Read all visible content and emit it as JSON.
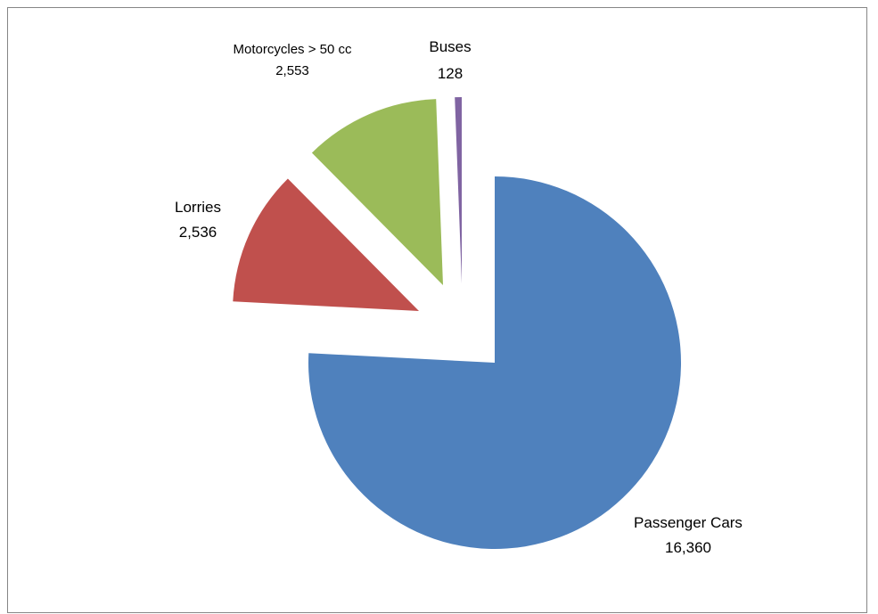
{
  "chart_data": {
    "type": "pie",
    "title": "",
    "slices": [
      {
        "label": "Passenger Cars",
        "value": 16360,
        "value_text": "16,360",
        "color": "#4F81BD"
      },
      {
        "label": "Lorries",
        "value": 2536,
        "value_text": "2,536",
        "color": "#C0504D"
      },
      {
        "label": "Motorcycles > 50 cc",
        "value": 2553,
        "value_text": "2,553",
        "color": "#9BBB59"
      },
      {
        "label": "Buses",
        "value": 128,
        "value_text": "128",
        "color": "#8064A2"
      }
    ],
    "exploded": true,
    "legend": "none",
    "data_labels": "category-and-value"
  }
}
